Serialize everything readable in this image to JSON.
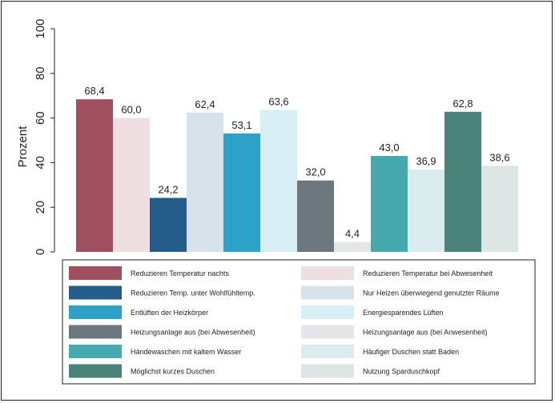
{
  "chart_data": {
    "type": "bar",
    "ylabel": "Prozent",
    "ylim": [
      0,
      100
    ],
    "yticks": [
      0,
      20,
      40,
      60,
      80,
      100
    ],
    "grid": false,
    "legend_placement": "bottom",
    "series": [
      {
        "name": "Reduzieren Temperatur nachts",
        "value": 68.4,
        "label": "68,4",
        "color": "#a04f5f"
      },
      {
        "name": "Reduzieren Temperatur bei Abwesenheit",
        "value": 60.0,
        "label": "60,0",
        "color": "#efdfe2"
      },
      {
        "name": "Reduzieren Temp. unter Wohlfühltemp.",
        "value": 24.2,
        "label": "24,2",
        "color": "#245c8b"
      },
      {
        "name": "Nur Heizen überwiegend genutzter Räume",
        "value": 62.4,
        "label": "62,4",
        "color": "#d7e2ea"
      },
      {
        "name": "Entlüften der Heizkörper",
        "value": 53.1,
        "label": "53,1",
        "color": "#2da1c7"
      },
      {
        "name": "Energiesparendes Lüften",
        "value": 63.6,
        "label": "63,6",
        "color": "#d9eff6"
      },
      {
        "name": "Heizungsanlage aus (bei Abwesenheit)",
        "value": 32.0,
        "label": "32,0",
        "color": "#6d777e"
      },
      {
        "name": "Heizungsanlage aus (bei Anwesenheit)",
        "value": 4.4,
        "label": "4,4",
        "color": "#e5e6e7"
      },
      {
        "name": "Händewaschen mit kaltem Wasser",
        "value": 43.0,
        "label": "43,0",
        "color": "#45a9ad"
      },
      {
        "name": "Häufiger Duschen statt Baden",
        "value": 36.9,
        "label": "36,9",
        "color": "#dbecef"
      },
      {
        "name": "Möglichst kurzes Duschen",
        "value": 62.8,
        "label": "62,8",
        "color": "#4a8379"
      },
      {
        "name": "Nutzung Sparduschkopf",
        "value": 38.6,
        "label": "38,6",
        "color": "#dde6e4"
      }
    ]
  }
}
